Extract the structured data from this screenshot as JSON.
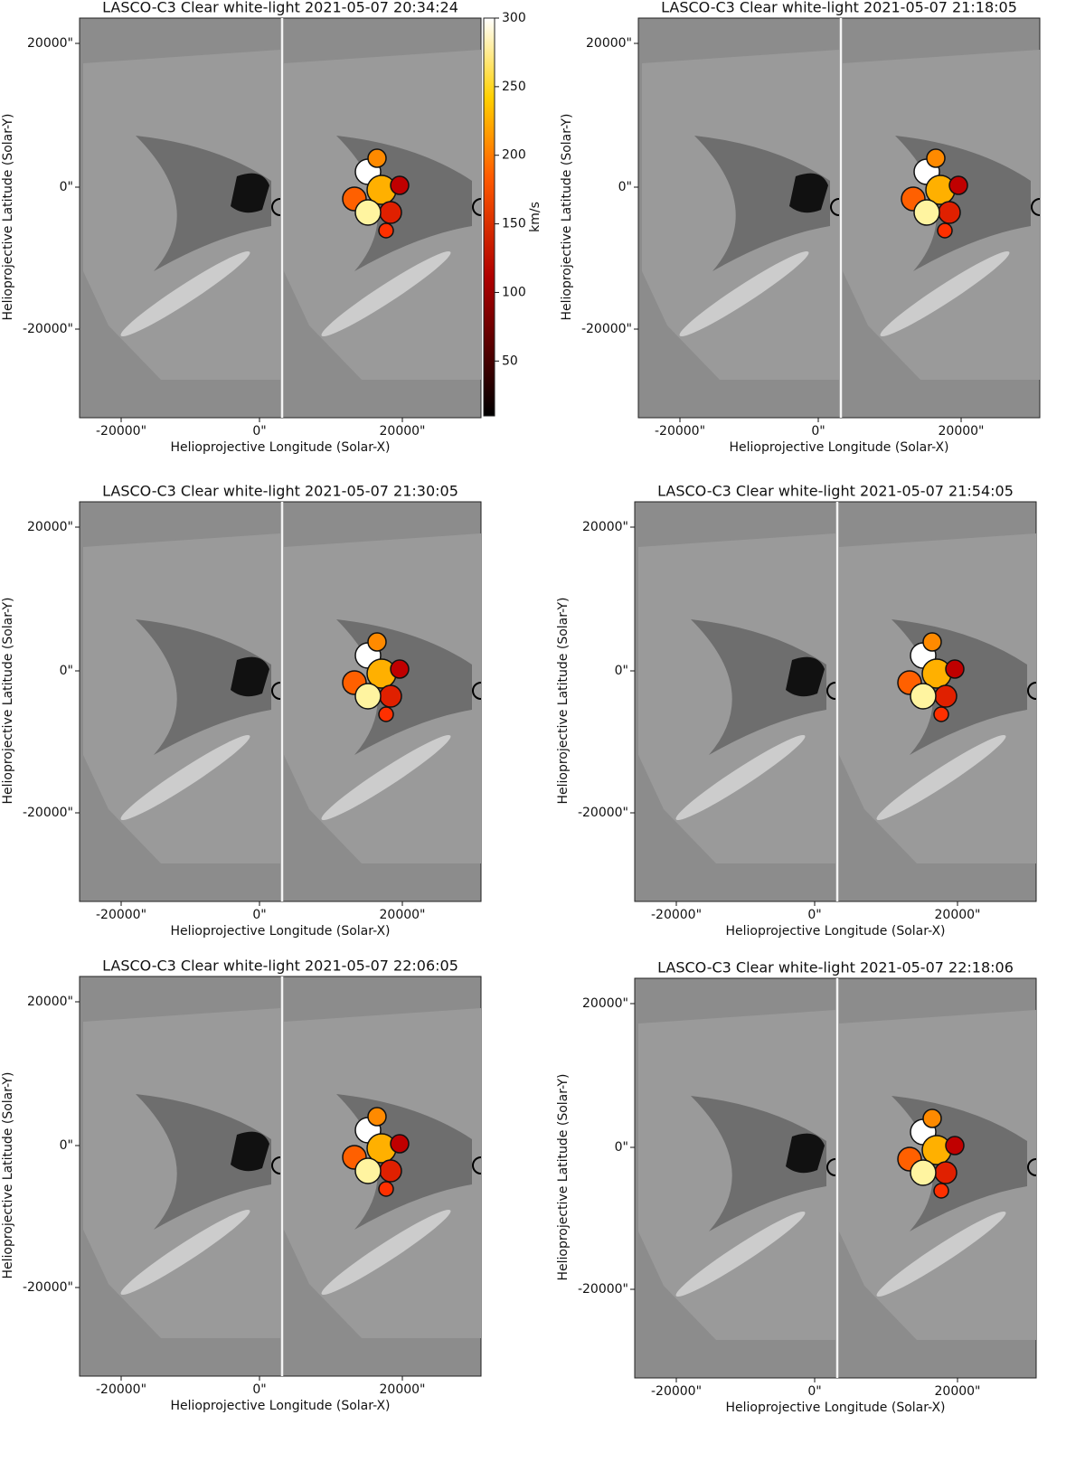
{
  "panels": [
    {
      "title": "LASCO-C3 Clear white-light 2021-05-07 20:34:24",
      "xlabel": "Helioprojective Longitude (Solar-X)",
      "ylabel": "Helioprojective Latitude (Solar-Y)",
      "xticks": [
        "-20000\"",
        "0\"",
        "20000\""
      ],
      "yticks": [
        "20000\"",
        "0\"",
        "-20000\""
      ]
    },
    {
      "title": "LASCO-C3 Clear white-light 2021-05-07 21:18:05",
      "xlabel": "Helioprojective Longitude (Solar-X)",
      "ylabel": "Helioprojective Latitude (Solar-Y)",
      "xticks": [
        "-20000\"",
        "0\"",
        "20000\""
      ],
      "yticks": [
        "20000\"",
        "0\"",
        "-20000\""
      ]
    },
    {
      "title": "LASCO-C3 Clear white-light 2021-05-07 21:30:05",
      "xlabel": "Helioprojective Longitude (Solar-X)",
      "ylabel": "Helioprojective Latitude (Solar-Y)",
      "xticks": [
        "-20000\"",
        "0\"",
        "20000\""
      ],
      "yticks": [
        "20000\"",
        "0\"",
        "-20000\""
      ]
    },
    {
      "title": "LASCO-C3 Clear white-light 2021-05-07 21:54:05",
      "xlabel": "Helioprojective Longitude (Solar-X)",
      "ylabel": "Helioprojective Latitude (Solar-Y)",
      "xticks": [
        "-20000\"",
        "0\"",
        "20000\""
      ],
      "yticks": [
        "20000\"",
        "0\"",
        "-20000\""
      ]
    },
    {
      "title": "LASCO-C3 Clear white-light 2021-05-07 22:06:05",
      "xlabel": "Helioprojective Longitude (Solar-X)",
      "ylabel": "Helioprojective Latitude (Solar-Y)",
      "xticks": [
        "-20000\"",
        "0\"",
        "20000\""
      ],
      "yticks": [
        "20000\"",
        "0\"",
        "-20000\""
      ]
    },
    {
      "title": "LASCO-C3 Clear white-light 2021-05-07 22:18:06",
      "xlabel": "Helioprojective Longitude (Solar-X)",
      "ylabel": "Helioprojective Latitude (Solar-Y)",
      "xticks": [
        "-20000\"",
        "0\"",
        "20000\""
      ],
      "yticks": [
        "20000\"",
        "0\"",
        "-20000\""
      ]
    }
  ],
  "colorbar": {
    "label": "km/s",
    "lim": [
      10,
      300
    ],
    "ticks": [
      50,
      100,
      150,
      200,
      250,
      300
    ]
  }
}
